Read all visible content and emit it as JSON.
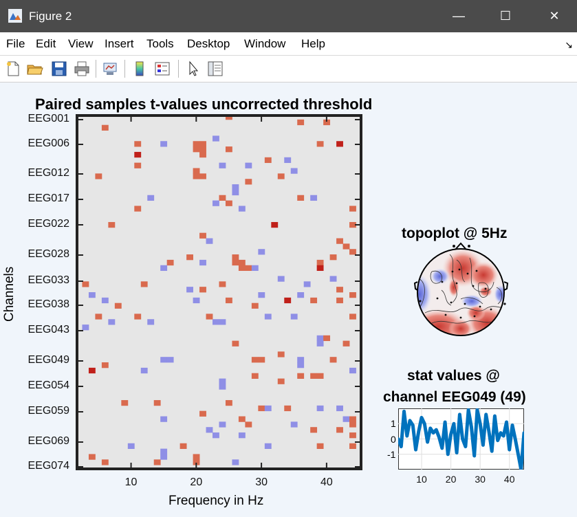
{
  "window": {
    "title": "Figure 2",
    "minimize_glyph": "—",
    "maximize_glyph": "☐",
    "close_glyph": "✕"
  },
  "menu": [
    "File",
    "Edit",
    "View",
    "Insert",
    "Tools",
    "Desktop",
    "Window",
    "Help"
  ],
  "undock_glyph": "↘",
  "toolbar_icons": [
    "new-figure-icon",
    "open-file-icon",
    "save-icon",
    "print-icon",
    "link-plot-icon",
    "insert-colorbar-icon",
    "insert-legend-icon",
    "edit-plot-icon",
    "property-inspector-icon"
  ],
  "colors": {
    "background": "#e6e6e6",
    "positive": "#d96a4e",
    "negative": "#8f8fe6",
    "strong_positive": "#c0201a",
    "line": "#0072bd"
  },
  "chart_data": [
    {
      "type": "heatmap",
      "title": "Paired samples t-values uncorrected threshold",
      "xlabel": "Frequency in Hz",
      "ylabel": "Channels",
      "xlim": [
        2,
        45
      ],
      "x_ticks": [
        10,
        20,
        30,
        40
      ],
      "y_tick_labels": [
        "EEG001",
        "EEG006",
        "EEG012",
        "EEG017",
        "EEG022",
        "EEG028",
        "EEG033",
        "EEG038",
        "EEG043",
        "EEG049",
        "EEG054",
        "EEG059",
        "EEG069",
        "EEG074"
      ],
      "cells": [
        [
          25,
          1,
          1
        ],
        [
          6,
          3,
          1
        ],
        [
          36,
          2,
          1
        ],
        [
          40,
          2,
          1
        ],
        [
          11,
          6,
          1
        ],
        [
          15,
          6,
          -1
        ],
        [
          20,
          6,
          1
        ],
        [
          21,
          6,
          1
        ],
        [
          20,
          7,
          1
        ],
        [
          21,
          7,
          1
        ],
        [
          23,
          5,
          -1
        ],
        [
          39,
          6,
          1
        ],
        [
          42,
          6,
          2
        ],
        [
          11,
          8,
          2
        ],
        [
          21,
          8,
          1
        ],
        [
          25,
          7,
          1
        ],
        [
          31,
          9,
          1
        ],
        [
          34,
          9,
          -1
        ],
        [
          11,
          10,
          1
        ],
        [
          24,
          10,
          -1
        ],
        [
          28,
          10,
          -1
        ],
        [
          35,
          11,
          -1
        ],
        [
          5,
          12,
          1
        ],
        [
          20,
          12,
          1
        ],
        [
          21,
          12,
          1
        ],
        [
          20,
          11,
          1
        ],
        [
          28,
          13,
          1
        ],
        [
          26,
          14,
          -1
        ],
        [
          33,
          12,
          1
        ],
        [
          24,
          16,
          1
        ],
        [
          26,
          15,
          -1
        ],
        [
          13,
          16,
          -1
        ],
        [
          23,
          17,
          -1
        ],
        [
          25,
          17,
          1
        ],
        [
          36,
          16,
          1
        ],
        [
          38,
          16,
          -1
        ],
        [
          11,
          18,
          1
        ],
        [
          27,
          18,
          -1
        ],
        [
          44,
          18,
          1
        ],
        [
          7,
          21,
          1
        ],
        [
          32,
          21,
          2
        ],
        [
          44,
          21,
          1
        ],
        [
          21,
          23,
          1
        ],
        [
          22,
          24,
          -1
        ],
        [
          42,
          24,
          1
        ],
        [
          30,
          26,
          -1
        ],
        [
          43,
          25,
          1
        ],
        [
          44,
          26,
          1
        ],
        [
          16,
          28,
          1
        ],
        [
          19,
          27,
          1
        ],
        [
          26,
          27,
          1
        ],
        [
          26,
          28,
          1
        ],
        [
          27,
          28,
          1
        ],
        [
          27,
          29,
          1
        ],
        [
          28,
          29,
          1
        ],
        [
          21,
          28,
          -1
        ],
        [
          41,
          27,
          1
        ],
        [
          15,
          29,
          -1
        ],
        [
          29,
          29,
          -1
        ],
        [
          39,
          28,
          1
        ],
        [
          39,
          29,
          2
        ],
        [
          3,
          32,
          1
        ],
        [
          12,
          32,
          1
        ],
        [
          24,
          32,
          1
        ],
        [
          33,
          31,
          -1
        ],
        [
          37,
          32,
          -1
        ],
        [
          41,
          31,
          -1
        ],
        [
          42,
          33,
          1
        ],
        [
          19,
          33,
          -1
        ],
        [
          21,
          33,
          1
        ],
        [
          4,
          34,
          -1
        ],
        [
          6,
          35,
          -1
        ],
        [
          20,
          35,
          -1
        ],
        [
          25,
          35,
          1
        ],
        [
          30,
          34,
          -1
        ],
        [
          34,
          35,
          2
        ],
        [
          36,
          34,
          -1
        ],
        [
          44,
          34,
          1
        ],
        [
          8,
          36,
          1
        ],
        [
          29,
          36,
          1
        ],
        [
          38,
          35,
          1
        ],
        [
          42,
          35,
          1
        ],
        [
          5,
          38,
          1
        ],
        [
          7,
          39,
          -1
        ],
        [
          11,
          38,
          1
        ],
        [
          13,
          39,
          -1
        ],
        [
          22,
          38,
          1
        ],
        [
          23,
          39,
          -1
        ],
        [
          24,
          39,
          -1
        ],
        [
          31,
          38,
          -1
        ],
        [
          35,
          38,
          -1
        ],
        [
          44,
          38,
          1
        ],
        [
          3,
          40,
          -1
        ],
        [
          39,
          42,
          -1
        ],
        [
          40,
          42,
          1
        ],
        [
          26,
          43,
          1
        ],
        [
          39,
          43,
          -1
        ],
        [
          43,
          43,
          1
        ],
        [
          33,
          45,
          1
        ],
        [
          15,
          46,
          -1
        ],
        [
          16,
          46,
          -1
        ],
        [
          29,
          46,
          1
        ],
        [
          30,
          46,
          1
        ],
        [
          36,
          46,
          -1
        ],
        [
          36,
          47,
          -1
        ],
        [
          41,
          46,
          1
        ],
        [
          4,
          48,
          2
        ],
        [
          6,
          47,
          1
        ],
        [
          12,
          48,
          -1
        ],
        [
          36,
          49,
          1
        ],
        [
          38,
          49,
          1
        ],
        [
          39,
          49,
          1
        ],
        [
          44,
          48,
          -1
        ],
        [
          24,
          50,
          -1
        ],
        [
          24,
          51,
          -1
        ],
        [
          29,
          49,
          1
        ],
        [
          33,
          50,
          1
        ],
        [
          9,
          54,
          1
        ],
        [
          14,
          54,
          1
        ],
        [
          25,
          54,
          1
        ],
        [
          34,
          55,
          1
        ],
        [
          42,
          55,
          -1
        ],
        [
          30,
          55,
          1
        ],
        [
          31,
          55,
          -1
        ],
        [
          39,
          55,
          -1
        ],
        [
          21,
          56,
          1
        ],
        [
          27,
          57,
          1
        ],
        [
          15,
          57,
          -1
        ],
        [
          43,
          57,
          -1
        ],
        [
          44,
          57,
          1
        ],
        [
          44,
          58,
          1
        ],
        [
          24,
          58,
          -1
        ],
        [
          28,
          58,
          1
        ],
        [
          35,
          58,
          -1
        ],
        [
          42,
          59,
          1
        ],
        [
          22,
          59,
          -1
        ],
        [
          23,
          60,
          -1
        ],
        [
          27,
          60,
          -1
        ],
        [
          38,
          59,
          1
        ],
        [
          44,
          60,
          1
        ],
        [
          10,
          62,
          -1
        ],
        [
          18,
          62,
          1
        ],
        [
          31,
          62,
          -1
        ],
        [
          39,
          62,
          1
        ],
        [
          44,
          62,
          1
        ],
        [
          15,
          63,
          -1
        ],
        [
          4,
          64,
          1
        ],
        [
          6,
          65,
          1
        ],
        [
          20,
          64,
          1
        ],
        [
          20,
          65,
          1
        ],
        [
          14,
          65,
          1
        ],
        [
          15,
          64,
          -1
        ],
        [
          26,
          65,
          -1
        ]
      ]
    },
    {
      "type": "heatmap",
      "title": "topoplot @ 5Hz",
      "colormap": "blue-white-red"
    },
    {
      "type": "line",
      "title": "stat values @",
      "subtitle": "channel EEG049 (49)",
      "xlim": [
        2,
        45
      ],
      "ylim": [
        -2,
        2
      ],
      "x_ticks": [
        10,
        20,
        30,
        40
      ],
      "y_ticks": [
        1,
        0,
        -1
      ],
      "series": [
        {
          "x": [
            2,
            3,
            4,
            5,
            6,
            7,
            8,
            9,
            10,
            11,
            12,
            13,
            14,
            15,
            16,
            17,
            18,
            19,
            20,
            21,
            22,
            23,
            24,
            25,
            26,
            27,
            28,
            29,
            30,
            31,
            32,
            33,
            34,
            35,
            36,
            37,
            38,
            39,
            40,
            41,
            42,
            43,
            44,
            45
          ],
          "values": [
            0,
            -0.5,
            1.8,
            0.2,
            1.2,
            0.9,
            -0.7,
            0.5,
            1.4,
            1.0,
            -0.2,
            0.7,
            0.4,
            0.6,
            0.1,
            -0.6,
            1.1,
            -1.0,
            0.3,
            1.0,
            -0.9,
            1.6,
            0.0,
            -0.5,
            1.9,
            0.8,
            -1.1,
            1.9,
            1.0,
            -0.4,
            1.6,
            0.5,
            -0.8,
            1.5,
            -0.1,
            0.4,
            0.2,
            1.1,
            -0.7,
            0.9,
            0.0,
            -1.0,
            -2.0,
            0.4
          ]
        }
      ]
    }
  ]
}
